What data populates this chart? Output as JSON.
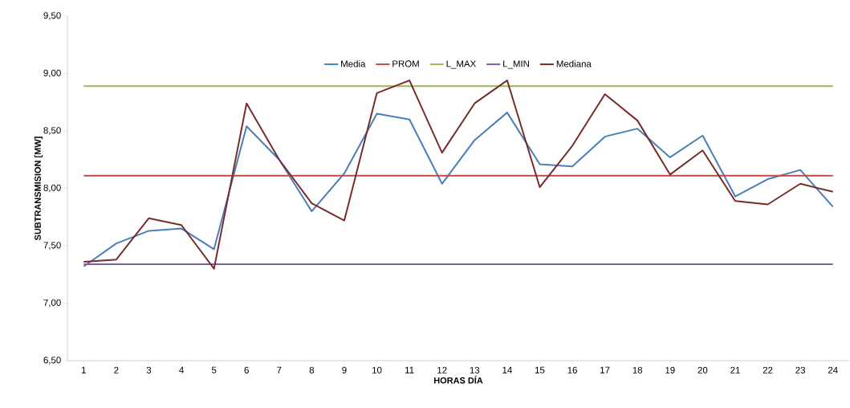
{
  "chart_data": {
    "type": "line",
    "xlabel": "HORAS DÍA",
    "ylabel": "SUBTRANSMISION [MW]",
    "categories": [
      "1",
      "2",
      "3",
      "4",
      "5",
      "6",
      "7",
      "8",
      "9",
      "10",
      "11",
      "12",
      "13",
      "14",
      "15",
      "16",
      "17",
      "18",
      "19",
      "20",
      "21",
      "22",
      "23",
      "24"
    ],
    "series": [
      {
        "name": "Media",
        "color": "#4a7ebb",
        "values": [
          7.32,
          7.52,
          7.63,
          7.65,
          7.47,
          8.54,
          8.25,
          7.8,
          8.13,
          8.65,
          8.6,
          8.04,
          8.42,
          8.66,
          8.21,
          8.19,
          8.45,
          8.52,
          8.27,
          8.46,
          7.93,
          8.08,
          8.16,
          7.84
        ]
      },
      {
        "name": "PROM",
        "color": "#be4b48",
        "values": [
          8.11,
          8.11,
          8.11,
          8.11,
          8.11,
          8.11,
          8.11,
          8.11,
          8.11,
          8.11,
          8.11,
          8.11,
          8.11,
          8.11,
          8.11,
          8.11,
          8.11,
          8.11,
          8.11,
          8.11,
          8.11,
          8.11,
          8.11,
          8.11
        ]
      },
      {
        "name": "L_MAX",
        "color": "#98b954",
        "values": [
          8.89,
          8.89,
          8.89,
          8.89,
          8.89,
          8.89,
          8.89,
          8.89,
          8.89,
          8.89,
          8.89,
          8.89,
          8.89,
          8.89,
          8.89,
          8.89,
          8.89,
          8.89,
          8.89,
          8.89,
          8.89,
          8.89,
          8.89,
          8.89
        ]
      },
      {
        "name": "L_MIN",
        "color": "#7d60a0",
        "values": [
          7.34,
          7.34,
          7.34,
          7.34,
          7.34,
          7.34,
          7.34,
          7.34,
          7.34,
          7.34,
          7.34,
          7.34,
          7.34,
          7.34,
          7.34,
          7.34,
          7.34,
          7.34,
          7.34,
          7.34,
          7.34,
          7.34,
          7.34,
          7.34
        ]
      },
      {
        "name": "Mediana",
        "color": "#772c2a",
        "values": [
          7.36,
          7.38,
          7.74,
          7.68,
          7.3,
          8.74,
          8.25,
          7.87,
          7.72,
          8.83,
          8.94,
          8.31,
          8.74,
          8.94,
          8.01,
          8.37,
          8.82,
          8.59,
          8.12,
          8.33,
          7.89,
          7.86,
          8.04,
          7.97
        ]
      }
    ],
    "ylim": [
      6.5,
      9.5
    ],
    "yticks": [
      {
        "value": 6.5,
        "label": "6,50"
      },
      {
        "value": 7.0,
        "label": "7,00"
      },
      {
        "value": 7.5,
        "label": "7,50"
      },
      {
        "value": 8.0,
        "label": "8,00"
      },
      {
        "value": 8.5,
        "label": "8,50"
      },
      {
        "value": 9.0,
        "label": "9,00"
      },
      {
        "value": 9.5,
        "label": "9,50"
      }
    ],
    "legend": "top",
    "marker": "none",
    "line_style": "solid"
  }
}
